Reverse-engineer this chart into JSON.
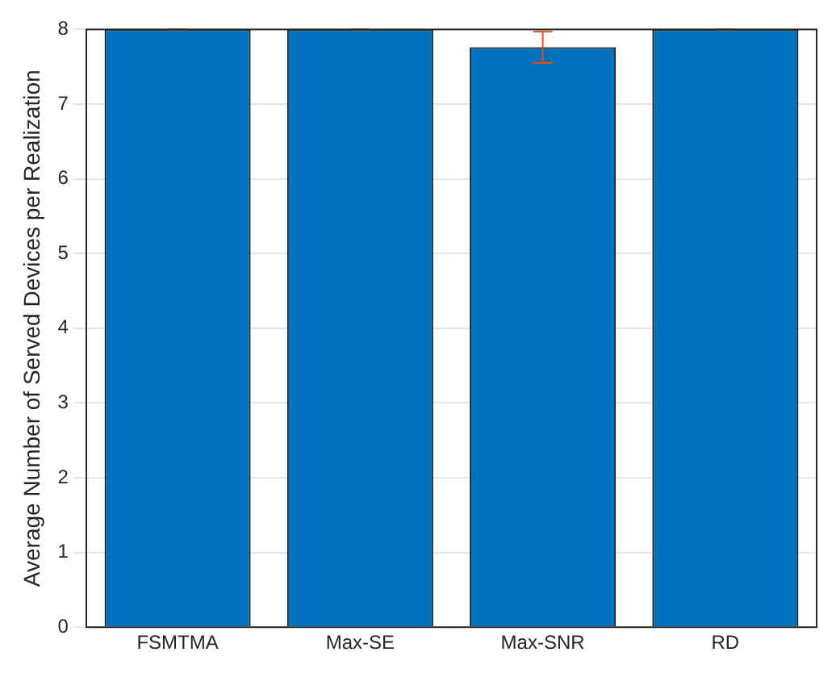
{
  "chart_data": {
    "type": "bar",
    "ylabel": "Average Number of Served Devices per Realization",
    "categories": [
      "FSMTMA",
      "Max-SE",
      "Max-SNR",
      "RD"
    ],
    "values": [
      8,
      8,
      7.76,
      8
    ],
    "errors": [
      0,
      0,
      0.21,
      0
    ],
    "color": "#0072bd",
    "ylim": [
      0,
      8
    ],
    "yticks": [
      0,
      1,
      2,
      3,
      4,
      5,
      6,
      7,
      8
    ],
    "grid": "y",
    "legend": false
  }
}
